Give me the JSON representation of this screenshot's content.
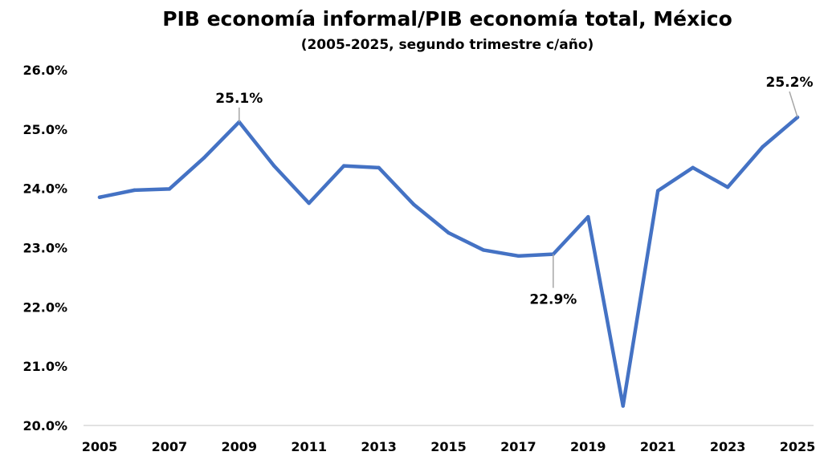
{
  "chart_data": {
    "type": "line",
    "title": "PIB economía informal/PIB economía total, México",
    "subtitle": "(2005-2025, segundo trimestre c/año)",
    "xlabel": "",
    "ylabel": "",
    "x": [
      2005,
      2006,
      2007,
      2008,
      2009,
      2010,
      2011,
      2012,
      2013,
      2014,
      2015,
      2016,
      2017,
      2018,
      2019,
      2020,
      2021,
      2022,
      2023,
      2024,
      2025
    ],
    "series": [
      {
        "name": "",
        "color": "#4472c4",
        "values": [
          23.85,
          23.97,
          23.99,
          24.52,
          25.12,
          24.38,
          23.75,
          24.38,
          24.35,
          23.73,
          23.25,
          22.96,
          22.86,
          22.89,
          23.52,
          20.33,
          23.96,
          24.35,
          24.02,
          24.7,
          25.2
        ]
      }
    ],
    "ylim": [
      20.0,
      26.0
    ],
    "xlim": [
      2005,
      2025
    ],
    "yticks": [
      "20.0%",
      "21.0%",
      "22.0%",
      "23.0%",
      "24.0%",
      "25.0%",
      "26.0%"
    ],
    "yticks_values": [
      20,
      21,
      22,
      23,
      24,
      25,
      26
    ],
    "xticks": [
      "2005",
      "2007",
      "2009",
      "2011",
      "2013",
      "2015",
      "2017",
      "2019",
      "2021",
      "2023",
      "2025"
    ],
    "xticks_values": [
      2005,
      2007,
      2009,
      2011,
      2013,
      2015,
      2017,
      2019,
      2021,
      2023,
      2025
    ],
    "grid": false,
    "legend": "none",
    "annotations": [
      {
        "x": 2009,
        "y": 25.12,
        "text": "25.1%"
      },
      {
        "x": 2018,
        "y": 22.89,
        "text": "22.9%"
      },
      {
        "x": 2025,
        "y": 25.2,
        "text": "25.2%"
      }
    ]
  }
}
